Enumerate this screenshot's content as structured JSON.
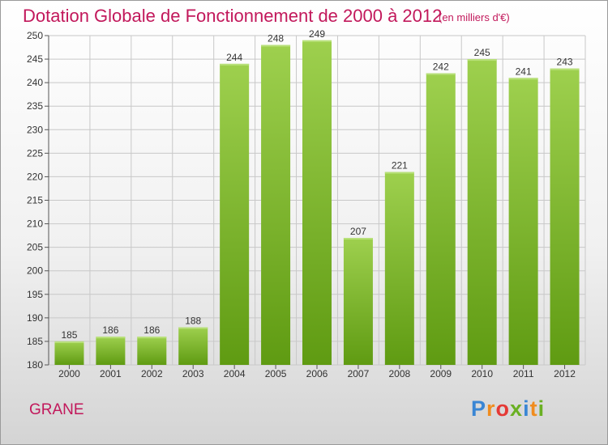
{
  "title": "Dotation Globale de Fonctionnement de 2000 à 2012",
  "unit": "(en milliers d'€)",
  "commune": "GRANE",
  "logo": {
    "letters": [
      "P",
      "r",
      "o",
      "x",
      "i",
      "t",
      "i"
    ],
    "colors": [
      "#3a86d4",
      "#f08c1e",
      "#e53935",
      "#6ab023",
      "#3a86d4",
      "#f08c1e",
      "#6ab023"
    ]
  },
  "colors": {
    "bar_top": "#9ed04e",
    "bar_bottom": "#5f9b12",
    "grid": "#c8c8c8",
    "accent": "#c2185b"
  },
  "chart_data": {
    "type": "bar",
    "categories": [
      "2000",
      "2001",
      "2002",
      "2003",
      "2004",
      "2005",
      "2006",
      "2007",
      "2008",
      "2009",
      "2010",
      "2011",
      "2012"
    ],
    "values": [
      185,
      186,
      186,
      188,
      244,
      248,
      249,
      207,
      221,
      242,
      245,
      241,
      243
    ],
    "ylim": [
      180,
      250
    ],
    "yticks": [
      180,
      185,
      190,
      195,
      200,
      205,
      210,
      215,
      220,
      225,
      230,
      235,
      240,
      245,
      250
    ],
    "grid": true
  }
}
